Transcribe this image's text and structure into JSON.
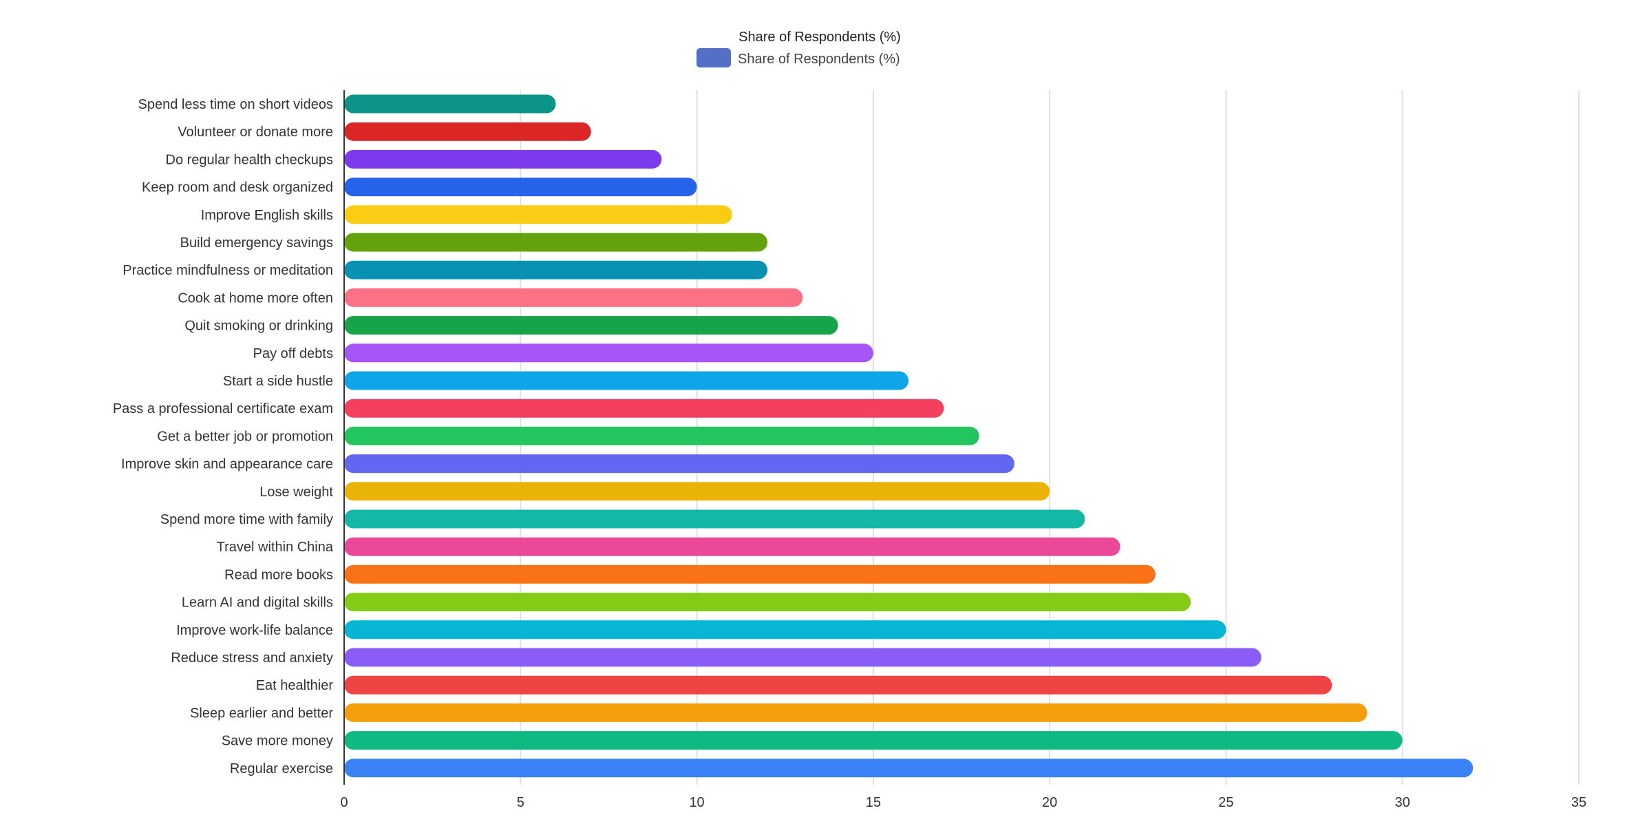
{
  "chart_data": {
    "type": "bar",
    "orientation": "horizontal",
    "title": "Share of Respondents (%)",
    "legend": {
      "position": "top-center",
      "entries": [
        "Share of Respondents (%)"
      ],
      "color": "#5470c6"
    },
    "categories": [
      "Spend less time on short videos",
      "Volunteer or donate more",
      "Do regular health checkups",
      "Keep room and desk organized",
      "Improve English skills",
      "Build emergency savings",
      "Practice mindfulness or meditation",
      "Cook at home more often",
      "Quit smoking or drinking",
      "Pay off debts",
      "Start a side hustle",
      "Pass a professional certificate exam",
      "Get a better job or promotion",
      "Improve skin and appearance care",
      "Lose weight",
      "Spend more time with family",
      "Travel within China",
      "Read more books",
      "Learn AI and digital skills",
      "Improve work-life balance",
      "Reduce stress and anxiety",
      "Eat healthier",
      "Sleep earlier and better",
      "Save more money",
      "Regular exercise"
    ],
    "series": [
      {
        "name": "Share of Respondents (%)",
        "values": [
          6,
          7,
          9,
          10,
          11,
          12,
          12,
          13,
          14,
          15,
          16,
          17,
          18,
          19,
          20,
          21,
          22,
          23,
          24,
          25,
          26,
          28,
          29,
          30,
          32
        ]
      }
    ],
    "bar_colors": [
      "#0d9488",
      "#dc2626",
      "#7c3aed",
      "#2563eb",
      "#facc15",
      "#65a30d",
      "#0891b2",
      "#fb7185",
      "#16a34a",
      "#a855f7",
      "#0ea5e9",
      "#f43f5e",
      "#22c55e",
      "#6366f1",
      "#eab308",
      "#14b8a6",
      "#ec4899",
      "#f97316",
      "#84cc16",
      "#06b6d4",
      "#8b5cf6",
      "#ef4444",
      "#f59e0b",
      "#10b981",
      "#3b82f6"
    ],
    "xlim": [
      0,
      35
    ],
    "xticks": [
      0,
      5,
      10,
      15,
      20,
      25,
      30,
      35
    ],
    "xlabel": "",
    "ylabel": "",
    "grid": {
      "vertical": true,
      "color": "#e0e0e0"
    }
  }
}
